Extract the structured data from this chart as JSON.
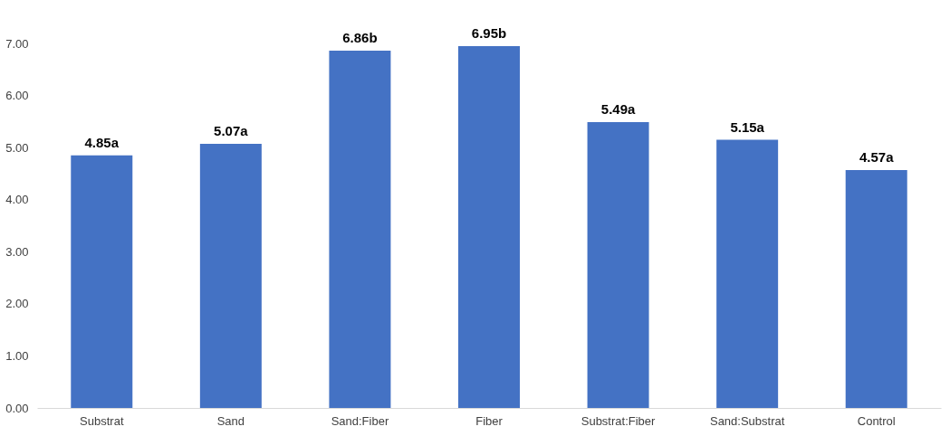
{
  "chart_data": {
    "type": "bar",
    "categories": [
      "Substrat",
      "Sand",
      "Sand:Fiber",
      "Fiber",
      "Substrat:Fiber",
      "Sand:Substrat",
      "Control"
    ],
    "values": [
      4.85,
      5.07,
      6.86,
      6.95,
      5.49,
      5.15,
      4.57
    ],
    "value_labels": [
      "4.85a",
      "5.07a",
      "6.86b",
      "6.95b",
      "5.49a",
      "5.15a",
      "4.57a"
    ],
    "color": "#4472c4",
    "ylim": [
      0,
      7
    ],
    "yticks": [
      {
        "value": 0,
        "label": "0.00"
      },
      {
        "value": 1,
        "label": "1.00"
      },
      {
        "value": 2,
        "label": "2.00"
      },
      {
        "value": 3,
        "label": "3.00"
      },
      {
        "value": 4,
        "label": "4.00"
      },
      {
        "value": 5,
        "label": "5.00"
      },
      {
        "value": 6,
        "label": "6.00"
      },
      {
        "value": 7,
        "label": "7.00"
      }
    ],
    "grid": false
  }
}
